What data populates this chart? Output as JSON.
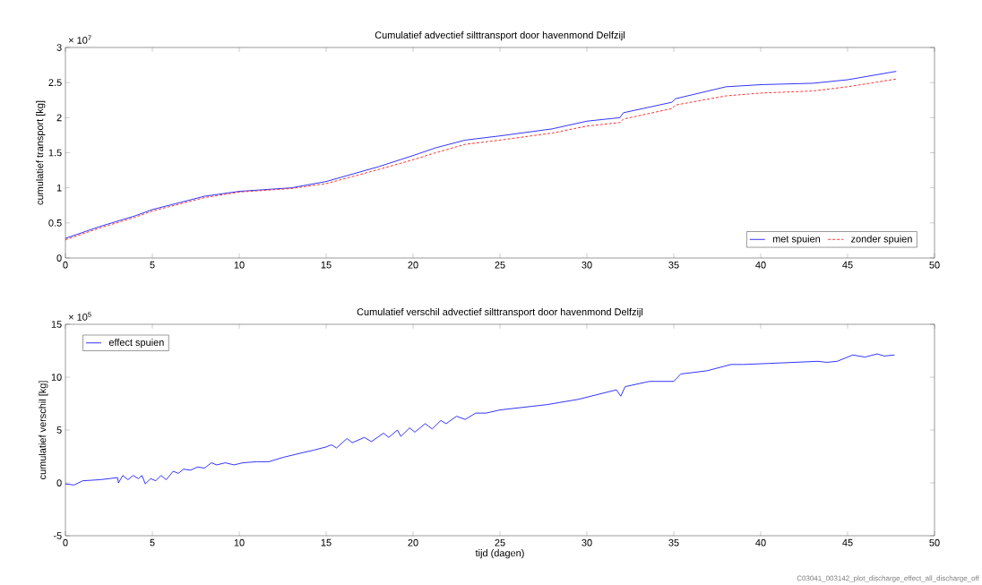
{
  "chart_data": [
    {
      "type": "line",
      "title": "Cumulatief advectief silttransport door havenmond Delfzijl",
      "ylabel": "cumulatief transport [kg]",
      "annotations": [
        "× 10$^{7}$"
      ],
      "x": [
        0,
        2,
        4,
        5,
        8,
        10,
        13,
        15,
        18,
        20,
        21.3,
        23,
        25,
        28,
        30,
        31.9,
        32.1,
        34.9,
        35.1,
        38,
        40,
        43,
        45,
        47.8
      ],
      "series": [
        {
          "name": "met spuien",
          "color": "#0000ff",
          "line_style": "solid",
          "values": [
            0.28,
            0.45,
            0.6,
            0.69,
            0.88,
            0.95,
            1.0,
            1.09,
            1.3,
            1.46,
            1.57,
            1.68,
            1.74,
            1.84,
            1.95,
            2.0,
            2.07,
            2.22,
            2.27,
            2.44,
            2.47,
            2.49,
            2.54,
            2.66
          ]
        },
        {
          "name": "zonder spuien",
          "color": "#ff0000",
          "line_style": "dashed",
          "values": [
            0.26,
            0.43,
            0.58,
            0.67,
            0.86,
            0.94,
            0.99,
            1.06,
            1.26,
            1.4,
            1.5,
            1.62,
            1.68,
            1.78,
            1.88,
            1.93,
            1.98,
            2.13,
            2.18,
            2.31,
            2.35,
            2.38,
            2.44,
            2.55
          ]
        }
      ],
      "xlim": [
        0,
        50
      ],
      "xticks": [
        0,
        5,
        10,
        15,
        20,
        25,
        30,
        35,
        40,
        45,
        50
      ],
      "ylim": [
        0,
        3
      ],
      "yticks": [
        0,
        0.5,
        1,
        1.5,
        2,
        2.5,
        3
      ],
      "legend": "bottom right",
      "grid": false
    },
    {
      "type": "line",
      "title": "Cumulatief verschil advectief silttransport door havenmond Delfzijl",
      "xlabel": "tijd (dagen)",
      "ylabel": "cumulatief verschil [kg]",
      "annotations": [
        "× 10$^{5}$",
        "C03041_003142_plot_discharge_effect_all_discharge_off"
      ],
      "series": [
        {
          "name": "effect spuien",
          "color": "#0000ff",
          "line_style": "solid",
          "x": [
            0,
            0.5,
            1,
            2,
            3,
            3.05,
            3.3,
            3.6,
            3.9,
            4.2,
            4.4,
            4.6,
            4.9,
            5.2,
            5.5,
            5.8,
            6.2,
            6.5,
            6.8,
            7.2,
            7.6,
            8,
            8.4,
            8.7,
            9.2,
            9.7,
            10.2,
            11,
            11.7,
            12.5,
            13.5,
            14.3,
            15,
            15.3,
            15.6,
            16.2,
            16.5,
            17.2,
            17.6,
            18.3,
            18.6,
            19.1,
            19.3,
            19.8,
            20.1,
            20.7,
            21.1,
            21.6,
            21.9,
            22.5,
            23,
            23.6,
            24.2,
            25,
            27.7,
            29.5,
            31.7,
            31.95,
            32.2,
            33.6,
            35,
            35.4,
            36.9,
            38.3,
            39,
            40.5,
            43.3,
            43.8,
            44.4,
            45.3,
            46,
            46.7,
            47.1,
            47.7
          ],
          "values": [
            -0.1,
            -0.2,
            0.2,
            0.3,
            0.5,
            0,
            0.7,
            0.3,
            0.7,
            0.4,
            0.7,
            -0.1,
            0.4,
            0.2,
            0.7,
            0.3,
            1.1,
            0.9,
            1.3,
            1.2,
            1.5,
            1.4,
            1.9,
            1.7,
            1.9,
            1.7,
            1.9,
            2.0,
            2.0,
            2.4,
            2.8,
            3.1,
            3.4,
            3.6,
            3.3,
            4.2,
            3.8,
            4.3,
            3.9,
            4.7,
            4.3,
            5.0,
            4.4,
            5.2,
            4.8,
            5.6,
            5.1,
            5.9,
            5.6,
            6.3,
            6.0,
            6.6,
            6.6,
            6.9,
            7.4,
            7.9,
            8.8,
            8.2,
            9.1,
            9.6,
            9.6,
            10.3,
            10.6,
            11.2,
            11.2,
            11.3,
            11.5,
            11.4,
            11.5,
            12.1,
            11.9,
            12.2,
            12.0,
            12.1
          ]
        }
      ],
      "xlim": [
        0,
        50
      ],
      "xticks": [
        0,
        5,
        10,
        15,
        20,
        25,
        30,
        35,
        40,
        45,
        50
      ],
      "ylim": [
        -5,
        15
      ],
      "yticks": [
        -5,
        0,
        5,
        10,
        15
      ],
      "legend": "top left",
      "grid": false
    }
  ]
}
